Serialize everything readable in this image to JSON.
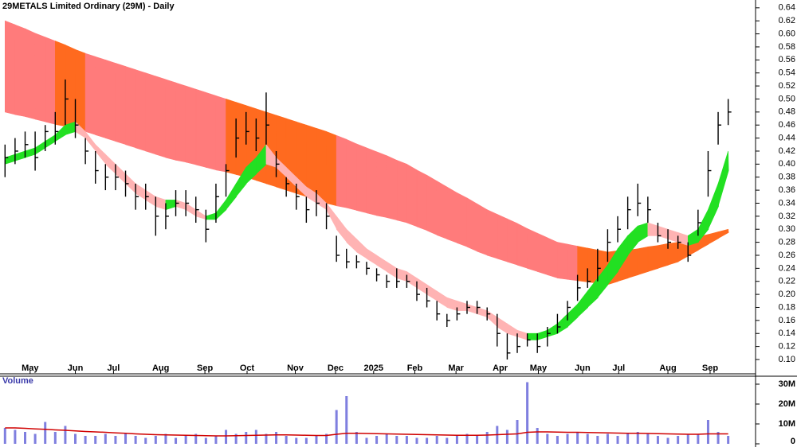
{
  "chart_data": [
    {
      "type": "hlc",
      "title": "29METALS Limited Ordinary (29M) - Daily",
      "x": [
        0.5,
        1.5,
        2.5,
        3.5,
        4.5,
        5.5,
        6.5,
        7.5,
        8.5,
        9.5,
        10.5,
        11.5,
        12.5,
        13.5,
        14.5,
        15.5,
        16.5,
        17.5,
        18.5,
        19.5,
        20.5,
        21.5,
        22.5,
        23.5,
        24.5,
        25.5,
        26.5,
        27.5,
        28.5,
        29.5,
        30.5,
        31.5,
        32.5,
        33.5,
        34.5,
        35.5,
        36.5,
        37.5,
        38.5,
        39.5,
        40.5,
        41.5,
        42.5,
        43.5,
        44.5,
        45.5,
        46.5,
        47.5,
        48.5,
        49.5,
        50.5,
        51.5,
        52.5,
        53.5,
        54.5,
        55.5,
        56.5,
        57.5,
        58.5,
        59.5,
        60.5,
        61.5,
        62.5,
        63.5,
        64.5,
        65.5,
        66.5,
        67.5,
        68.5,
        69.5,
        70.5,
        71.5,
        72.5
      ],
      "xlim": [
        0,
        73.4
      ],
      "xticks": [
        {
          "value": 3.0,
          "label": "May"
        },
        {
          "value": 7.5,
          "label": "Jun"
        },
        {
          "value": 11.3,
          "label": "Jul"
        },
        {
          "value": 16.0,
          "label": "Aug"
        },
        {
          "value": 20.4,
          "label": "Sep"
        },
        {
          "value": 24.6,
          "label": "Oct"
        },
        {
          "value": 29.4,
          "label": "Nov"
        },
        {
          "value": 33.4,
          "label": "Dec"
        },
        {
          "value": 37.2,
          "label": "2025"
        },
        {
          "value": 41.3,
          "label": "Feb"
        },
        {
          "value": 45.4,
          "label": "Mar"
        },
        {
          "value": 49.8,
          "label": "Apr"
        },
        {
          "value": 53.6,
          "label": "May"
        },
        {
          "value": 58.0,
          "label": "Jun"
        },
        {
          "value": 61.6,
          "label": "Jul"
        },
        {
          "value": 66.5,
          "label": "Aug"
        },
        {
          "value": 70.7,
          "label": "Sep"
        }
      ],
      "ylim": [
        0.078,
        0.652
      ],
      "yticks": [
        {
          "value": 0.1,
          "label": "0.10"
        },
        0.12,
        0.14,
        0.16,
        0.18,
        {
          "value": 0.2,
          "label": "0.20"
        },
        0.22,
        0.24,
        0.26,
        0.28,
        {
          "value": 0.3,
          "label": "0.30"
        },
        0.32,
        0.34,
        0.36,
        0.38,
        {
          "value": 0.4,
          "label": "0.40"
        },
        0.42,
        0.44,
        0.46,
        0.48,
        {
          "value": 0.5,
          "label": "0.50"
        },
        0.52,
        0.54,
        0.56,
        0.58,
        {
          "value": 0.6,
          "label": "0.60"
        },
        0.62,
        0.64
      ],
      "color": "#000000",
      "high": [
        0.43,
        0.44,
        0.45,
        0.45,
        0.46,
        0.48,
        0.53,
        0.5,
        0.44,
        0.42,
        0.4,
        0.4,
        0.39,
        0.37,
        0.37,
        0.35,
        0.34,
        0.36,
        0.36,
        0.35,
        0.33,
        0.37,
        0.4,
        0.47,
        0.48,
        0.47,
        0.51,
        0.42,
        0.38,
        0.37,
        0.35,
        0.36,
        0.34,
        0.29,
        0.27,
        0.26,
        0.25,
        0.24,
        0.23,
        0.24,
        0.23,
        0.22,
        0.21,
        0.19,
        0.17,
        0.18,
        0.19,
        0.19,
        0.18,
        0.17,
        0.14,
        0.14,
        0.14,
        0.14,
        0.15,
        0.17,
        0.19,
        0.23,
        0.24,
        0.27,
        0.3,
        0.32,
        0.35,
        0.37,
        0.35,
        0.31,
        0.3,
        0.29,
        0.28,
        0.33,
        0.42,
        0.48,
        0.5
      ],
      "low": [
        0.38,
        0.4,
        0.41,
        0.39,
        0.42,
        0.43,
        0.46,
        0.44,
        0.4,
        0.37,
        0.36,
        0.36,
        0.35,
        0.33,
        0.33,
        0.29,
        0.3,
        0.32,
        0.32,
        0.31,
        0.28,
        0.31,
        0.35,
        0.41,
        0.43,
        0.42,
        0.43,
        0.38,
        0.35,
        0.33,
        0.31,
        0.32,
        0.3,
        0.25,
        0.24,
        0.24,
        0.23,
        0.22,
        0.21,
        0.21,
        0.21,
        0.19,
        0.18,
        0.16,
        0.15,
        0.16,
        0.17,
        0.17,
        0.16,
        0.12,
        0.1,
        0.11,
        0.12,
        0.11,
        0.12,
        0.14,
        0.16,
        0.19,
        0.21,
        0.22,
        0.25,
        0.28,
        0.3,
        0.32,
        0.31,
        0.28,
        0.27,
        0.27,
        0.25,
        0.29,
        0.35,
        0.43,
        0.46
      ],
      "close": [
        0.41,
        0.42,
        0.43,
        0.41,
        0.45,
        0.45,
        0.5,
        0.46,
        0.42,
        0.39,
        0.38,
        0.38,
        0.37,
        0.35,
        0.35,
        0.32,
        0.32,
        0.34,
        0.34,
        0.33,
        0.3,
        0.35,
        0.39,
        0.44,
        0.45,
        0.44,
        0.46,
        0.4,
        0.37,
        0.35,
        0.33,
        0.34,
        0.32,
        0.26,
        0.25,
        0.25,
        0.24,
        0.23,
        0.22,
        0.22,
        0.22,
        0.2,
        0.19,
        0.17,
        0.16,
        0.17,
        0.18,
        0.18,
        0.17,
        0.14,
        0.11,
        0.12,
        0.13,
        0.12,
        0.14,
        0.15,
        0.18,
        0.21,
        0.22,
        0.24,
        0.28,
        0.3,
        0.33,
        0.34,
        0.33,
        0.29,
        0.28,
        0.28,
        0.26,
        0.31,
        0.39,
        0.46,
        0.48
      ],
      "long_band": {
        "color": "#ff7b7b",
        "alt_color": "#ff6a1f",
        "upper": [
          0.62,
          0.614,
          0.608,
          0.601,
          0.595,
          0.589,
          0.583,
          0.576,
          0.57,
          0.565,
          0.56,
          0.555,
          0.55,
          0.545,
          0.54,
          0.535,
          0.53,
          0.525,
          0.52,
          0.515,
          0.51,
          0.505,
          0.5,
          0.495,
          0.49,
          0.485,
          0.48,
          0.475,
          0.47,
          0.465,
          0.46,
          0.455,
          0.45,
          0.444,
          0.438,
          0.431,
          0.425,
          0.419,
          0.413,
          0.406,
          0.4,
          0.391,
          0.383,
          0.374,
          0.365,
          0.356,
          0.348,
          0.339,
          0.33,
          0.323,
          0.316,
          0.309,
          0.301,
          0.294,
          0.287,
          0.28,
          0.277,
          0.274,
          0.271,
          0.268,
          0.265,
          0.267,
          0.268,
          0.27,
          0.273,
          0.275,
          0.278,
          0.28,
          0.284,
          0.288,
          0.292,
          0.296,
          0.3
        ],
        "lower": [
          0.48,
          0.476,
          0.473,
          0.469,
          0.465,
          0.461,
          0.458,
          0.454,
          0.45,
          0.445,
          0.44,
          0.435,
          0.43,
          0.425,
          0.42,
          0.415,
          0.41,
          0.406,
          0.403,
          0.399,
          0.395,
          0.391,
          0.388,
          0.384,
          0.38,
          0.375,
          0.37,
          0.365,
          0.36,
          0.355,
          0.35,
          0.345,
          0.34,
          0.336,
          0.333,
          0.329,
          0.325,
          0.321,
          0.318,
          0.314,
          0.31,
          0.304,
          0.298,
          0.291,
          0.285,
          0.279,
          0.273,
          0.266,
          0.26,
          0.255,
          0.25,
          0.245,
          0.24,
          0.235,
          0.23,
          0.225,
          0.223,
          0.221,
          0.219,
          0.217,
          0.215,
          0.22,
          0.225,
          0.23,
          0.235,
          0.24,
          0.245,
          0.25,
          0.259,
          0.268,
          0.277,
          0.286,
          0.295
        ]
      },
      "short_band": {
        "color": "#ffb3b3",
        "alt_color": "#22e022",
        "upper": [
          0.41,
          0.415,
          0.42,
          0.425,
          0.435,
          0.445,
          0.46,
          0.465,
          0.45,
          0.43,
          0.415,
          0.4,
          0.385,
          0.37,
          0.36,
          0.35,
          0.345,
          0.345,
          0.34,
          0.33,
          0.32,
          0.325,
          0.345,
          0.37,
          0.395,
          0.41,
          0.43,
          0.41,
          0.395,
          0.38,
          0.365,
          0.355,
          0.34,
          0.32,
          0.3,
          0.285,
          0.27,
          0.26,
          0.25,
          0.24,
          0.235,
          0.225,
          0.215,
          0.205,
          0.195,
          0.19,
          0.185,
          0.18,
          0.175,
          0.165,
          0.155,
          0.145,
          0.14,
          0.14,
          0.145,
          0.155,
          0.17,
          0.185,
          0.205,
          0.225,
          0.245,
          0.27,
          0.29,
          0.305,
          0.31,
          0.305,
          0.3,
          0.295,
          0.29,
          0.3,
          0.33,
          0.37,
          0.42
        ],
        "lower": [
          0.4,
          0.405,
          0.41,
          0.415,
          0.425,
          0.435,
          0.445,
          0.45,
          0.44,
          0.42,
          0.4,
          0.385,
          0.37,
          0.355,
          0.345,
          0.335,
          0.33,
          0.335,
          0.33,
          0.32,
          0.315,
          0.315,
          0.33,
          0.35,
          0.37,
          0.385,
          0.4,
          0.395,
          0.38,
          0.365,
          0.35,
          0.34,
          0.33,
          0.3,
          0.28,
          0.265,
          0.255,
          0.245,
          0.235,
          0.225,
          0.22,
          0.21,
          0.2,
          0.19,
          0.18,
          0.175,
          0.175,
          0.17,
          0.165,
          0.15,
          0.14,
          0.135,
          0.13,
          0.13,
          0.135,
          0.14,
          0.15,
          0.165,
          0.18,
          0.195,
          0.215,
          0.235,
          0.26,
          0.28,
          0.29,
          0.29,
          0.285,
          0.28,
          0.275,
          0.28,
          0.3,
          0.335,
          0.39
        ]
      }
    },
    {
      "type": "bar",
      "title": "Volume",
      "values": [
        8,
        7,
        6,
        5,
        11,
        6,
        9,
        5,
        4,
        4,
        5,
        4,
        5,
        4,
        3,
        4,
        5,
        3,
        4,
        5,
        3,
        4,
        7,
        5,
        6,
        7,
        5,
        6,
        4,
        3,
        3,
        4,
        5,
        17,
        24,
        6,
        3,
        4,
        5,
        4,
        4,
        3,
        3,
        4,
        3,
        4,
        5,
        4,
        6,
        9,
        7,
        12,
        31,
        8,
        5,
        4,
        5,
        6,
        5,
        4,
        5,
        4,
        5,
        6,
        5,
        4,
        3,
        4,
        5,
        5,
        12,
        6,
        4
      ],
      "color": "#7f7fdf",
      "ma": [
        8,
        8,
        7.8,
        7.5,
        7.3,
        7,
        6.8,
        6.5,
        6.2,
        6,
        5.8,
        5.5,
        5.3,
        5,
        4.8,
        4.6,
        4.5,
        4.4,
        4.3,
        4.2,
        4.1,
        4,
        4,
        4.1,
        4.2,
        4.3,
        4.4,
        4.5,
        4.5,
        4.4,
        4.3,
        4.2,
        4.2,
        4.8,
        5.3,
        5.3,
        5.2,
        5.1,
        5,
        4.9,
        4.8,
        4.7,
        4.6,
        4.5,
        4.4,
        4.3,
        4.3,
        4.3,
        4.4,
        4.6,
        4.8,
        5,
        5.8,
        6,
        6,
        5.9,
        5.8,
        5.8,
        5.7,
        5.6,
        5.5,
        5.4,
        5.3,
        5.3,
        5.2,
        5.1,
        5,
        4.9,
        4.8,
        4.8,
        5,
        5,
        5
      ],
      "ma_color": "#d00000",
      "ylim": [
        0,
        34.4
      ],
      "yticks": [
        0,
        {
          "value": 10,
          "label": "10M"
        },
        {
          "value": 20,
          "label": "20M"
        },
        {
          "value": 30,
          "label": "30M"
        }
      ]
    }
  ]
}
